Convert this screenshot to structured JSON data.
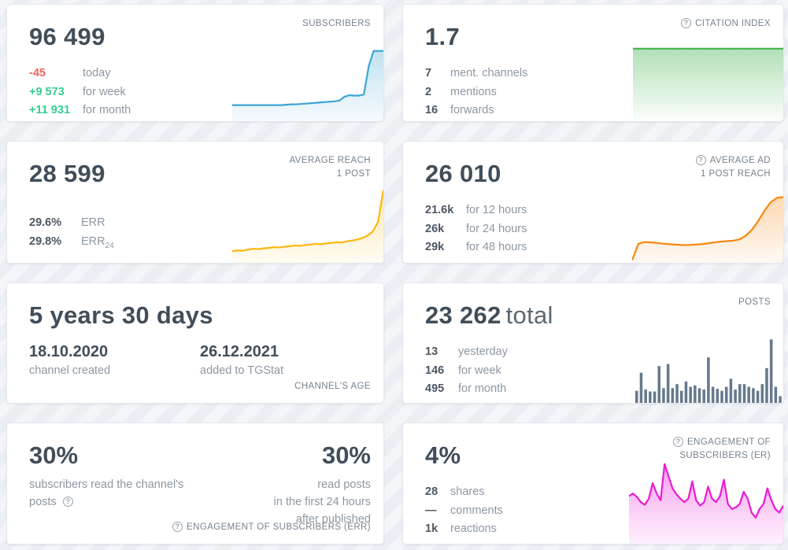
{
  "icons": {
    "help_glyph": "?"
  },
  "colors": {
    "page_bg": "#eef0f4",
    "card_bg": "#ffffff",
    "text_dark": "#414e5a",
    "text_gray": "#8d97a2",
    "label_gray": "#76828e",
    "negative_red": "#f4655f",
    "positive_green": "#38cd90",
    "subscribers_line": "#3ea6d3",
    "citation_line": "#47b553",
    "avg_reach_line": "#fcb70d",
    "avg_ad_line": "#f7870f",
    "posts_bar": "#66798d",
    "er_line": "#e91bd4"
  },
  "cards": {
    "subscribers": {
      "label": "SUBSCRIBERS",
      "value": "96 499",
      "stats": [
        {
          "value": "-45",
          "label": "today"
        },
        {
          "value": "+9 573",
          "label": "for week"
        },
        {
          "value": "+11 931",
          "label": "for month"
        }
      ]
    },
    "citation": {
      "label": "CITATION INDEX",
      "value": "1.7",
      "stats": [
        {
          "value": "7",
          "label": "ment. channels"
        },
        {
          "value": "2",
          "label": "mentions"
        },
        {
          "value": "16",
          "label": "forwards"
        }
      ]
    },
    "avg_reach": {
      "label_line1": "AVERAGE REACH",
      "label_line2": "1 POST",
      "value": "28 599",
      "stats": [
        {
          "value": "29.6%",
          "label": "ERR",
          "label_sub": ""
        },
        {
          "value": "29.8%",
          "label": "ERR",
          "label_sub": "24"
        }
      ]
    },
    "avg_ad_reach": {
      "label_line1": "AVERAGE AD",
      "label_line2": "1 POST REACH",
      "value": "26 010",
      "stats": [
        {
          "value": "21.6k",
          "label": "for 12 hours"
        },
        {
          "value": "26k",
          "label": "for 24 hours"
        },
        {
          "value": "29k",
          "label": "for 48 hours"
        }
      ]
    },
    "channel_age": {
      "value": "5 years 30 days",
      "label": "CHANNEL'S AGE",
      "created": {
        "date": "18.10.2020",
        "label": "channel created"
      },
      "added": {
        "date": "26.12.2021",
        "label": "added to TGStat"
      }
    },
    "posts": {
      "label": "POSTS",
      "value": "23 262",
      "value_suffix": "total",
      "stats": [
        {
          "value": "13",
          "label": "yesterday"
        },
        {
          "value": "146",
          "label": "for week"
        },
        {
          "value": "495",
          "label": "for month"
        }
      ]
    },
    "err": {
      "left_value": "30%",
      "left_caption": "subscribers read the channel's posts",
      "right_value": "30%",
      "right_caption_lines": [
        "read posts",
        "in the first 24 hours",
        "after published"
      ],
      "bottom_label": "ENGAGEMENT OF SUBSCRIBERS (ERR)"
    },
    "er": {
      "label_line1": "ENGAGEMENT OF",
      "label_line2": "SUBSCRIBERS (ER)",
      "value": "4%",
      "stats": [
        {
          "value": "28",
          "label": "shares"
        },
        {
          "value": "—",
          "label": "comments"
        },
        {
          "value": "1k",
          "label": "reactions"
        }
      ]
    }
  },
  "chart_data": [
    {
      "id": "subscribers",
      "type": "area",
      "title": "Subscribers trend sparkline",
      "color": "#3ea6d3",
      "fill_top": 0.32,
      "fill_bottom": 0.05,
      "ylim": [
        0,
        100
      ],
      "units": "relative height %, evenly spaced time steps",
      "values": [
        21,
        21,
        21,
        21,
        21,
        21,
        21,
        21,
        21,
        21,
        21,
        21.5,
        22,
        22,
        22.5,
        23,
        23.5,
        24,
        24.5,
        25,
        25.5,
        26,
        27,
        32,
        34,
        33.5,
        33.5,
        35,
        72,
        92,
        92,
        92
      ]
    },
    {
      "id": "citation",
      "type": "area",
      "title": "Citation index sparkline (flat)",
      "color": "#47b553",
      "fill_top": 0.42,
      "fill_bottom": 0.02,
      "ylim": [
        0,
        100
      ],
      "units": "relative height %",
      "values": [
        95,
        95
      ]
    },
    {
      "id": "avg_reach",
      "type": "area",
      "title": "Average reach per post sparkline",
      "color": "#fcb70d",
      "fill_top": 0.3,
      "fill_bottom": 0.05,
      "ylim": [
        0,
        100
      ],
      "units": "relative height %, evenly spaced time steps",
      "values": [
        14,
        15,
        14.5,
        16,
        17,
        16.5,
        17.5,
        18,
        19,
        18.5,
        19.5,
        20,
        21,
        20.5,
        21.5,
        22,
        23,
        22.5,
        23.5,
        24,
        25,
        24.5,
        26,
        27,
        28,
        30,
        33,
        38,
        50,
        88
      ]
    },
    {
      "id": "avg_ad_reach",
      "type": "area",
      "title": "Average ad post reach sparkline",
      "color": "#f7870f",
      "fill_top": 0.32,
      "fill_bottom": 0.05,
      "ylim": [
        0,
        100
      ],
      "units": "relative height %, evenly spaced time steps",
      "values": [
        3,
        22,
        24,
        23.5,
        23,
        22,
        21.5,
        21,
        20.5,
        20.5,
        21,
        21.5,
        22.5,
        23.5,
        24.5,
        25,
        25.5,
        27,
        31,
        38,
        48,
        60,
        70,
        75,
        76
      ]
    },
    {
      "id": "posts",
      "type": "bar",
      "title": "Posts per day bar sparkline",
      "color": "#66798d",
      "ylim": [
        0,
        100
      ],
      "units": "relative height %, one bar per day",
      "values": [
        18,
        45,
        20,
        17,
        17,
        55,
        22,
        58,
        22,
        28,
        18,
        32,
        24,
        26,
        22,
        20,
        68,
        24,
        21,
        18,
        24,
        36,
        20,
        28,
        28,
        24,
        22,
        18,
        28,
        52,
        95,
        24,
        10
      ]
    },
    {
      "id": "er",
      "type": "area",
      "title": "Engagement of subscribers (ER) sparkline",
      "color": "#e91bd4",
      "fill_top": 0.42,
      "fill_bottom": 0.06,
      "ylim": [
        0,
        100
      ],
      "units": "relative height %, evenly spaced time steps",
      "values": [
        55,
        58,
        54,
        48,
        45,
        52,
        70,
        58,
        50,
        92,
        78,
        64,
        57,
        52,
        48,
        52,
        72,
        50,
        44,
        48,
        66,
        52,
        48,
        55,
        74,
        46,
        40,
        42,
        46,
        60,
        52,
        36,
        30,
        40,
        46,
        64,
        50,
        40,
        36,
        44
      ]
    }
  ]
}
